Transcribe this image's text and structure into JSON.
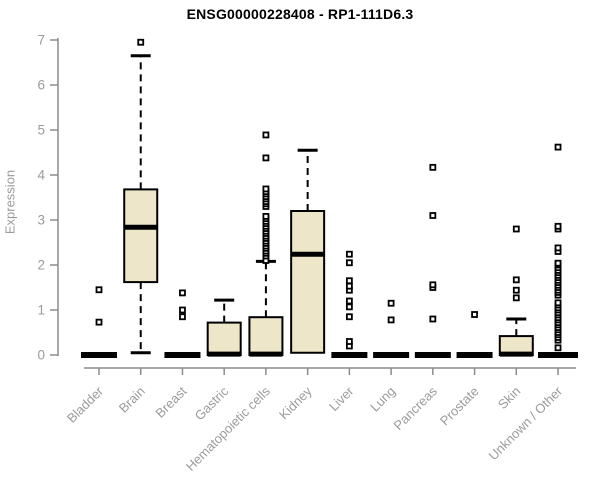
{
  "title": "ENSG00000228408 - RP1-111D6.3",
  "chart_data": {
    "type": "boxplot",
    "title": "ENSG00000228408 - RP1-111D6.3",
    "xlabel": "",
    "ylabel": "Expression",
    "ylim": [
      0,
      7
    ],
    "yticks": [
      0,
      1,
      2,
      3,
      4,
      5,
      6,
      7
    ],
    "grid": false,
    "legend": null,
    "colors": {
      "box_fill": "#ede6c8",
      "box_stroke": "#000000",
      "axis": "#8c8c8c",
      "tick_label": "#9b9b9b",
      "title": "#000000",
      "background": "#ffffff"
    },
    "categories": [
      "Bladder",
      "Brain",
      "Breast",
      "Gastric",
      "Hematopoietic cells",
      "Kidney",
      "Liver",
      "Lung",
      "Pancreas",
      "Prostate",
      "Skin",
      "Unknown / Other"
    ],
    "boxes": [
      {
        "label": "Bladder",
        "collapsed": true,
        "q1": 0,
        "median": 0,
        "q3": 0,
        "whisker_low": 0,
        "whisker_high": 0,
        "outliers": [
          0.73,
          1.45
        ]
      },
      {
        "label": "Brain",
        "collapsed": false,
        "q1": 1.62,
        "median": 2.84,
        "q3": 3.68,
        "whisker_low": 0.05,
        "whisker_high": 6.65,
        "outliers": [
          6.95
        ]
      },
      {
        "label": "Breast",
        "collapsed": true,
        "q1": 0,
        "median": 0,
        "q3": 0,
        "whisker_low": 0,
        "whisker_high": 0,
        "outliers": [
          0.85,
          1.0,
          1.38
        ]
      },
      {
        "label": "Gastric",
        "collapsed": false,
        "q1": 0,
        "median": 0.02,
        "q3": 0.72,
        "whisker_low": 0,
        "whisker_high": 1.22,
        "outliers": []
      },
      {
        "label": "Hematopoietic cells",
        "collapsed": false,
        "q1": 0,
        "median": 0.02,
        "q3": 0.84,
        "whisker_low": 0,
        "whisker_high": 2.08,
        "outliers": [
          2.1,
          2.2,
          2.26,
          2.31,
          2.37,
          2.42,
          2.48,
          2.53,
          2.59,
          2.64,
          2.7,
          2.75,
          2.81,
          2.86,
          2.92,
          2.97,
          3.03,
          3.08,
          3.3,
          3.36,
          3.41,
          3.47,
          3.52,
          3.58,
          3.63,
          3.69,
          4.38,
          4.89
        ]
      },
      {
        "label": "Kidney",
        "collapsed": false,
        "q1": 0.05,
        "median": 2.24,
        "q3": 3.2,
        "whisker_low": 0.05,
        "whisker_high": 4.55,
        "outliers": []
      },
      {
        "label": "Liver",
        "collapsed": true,
        "q1": 0,
        "median": 0,
        "q3": 0,
        "whisker_low": 0,
        "whisker_high": 0,
        "outliers": [
          0.2,
          0.3,
          0.85,
          1.07,
          1.2,
          1.44,
          1.53,
          1.65,
          2.05,
          2.24
        ]
      },
      {
        "label": "Lung",
        "collapsed": true,
        "q1": 0,
        "median": 0,
        "q3": 0,
        "whisker_low": 0,
        "whisker_high": 0,
        "outliers": [
          0.78,
          1.15
        ]
      },
      {
        "label": "Pancreas",
        "collapsed": true,
        "q1": 0,
        "median": 0,
        "q3": 0,
        "whisker_low": 0,
        "whisker_high": 0,
        "outliers": [
          0.8,
          1.5,
          1.56,
          3.1,
          4.17
        ]
      },
      {
        "label": "Prostate",
        "collapsed": true,
        "q1": 0,
        "median": 0,
        "q3": 0,
        "whisker_low": 0,
        "whisker_high": 0,
        "outliers": [
          0.9
        ]
      },
      {
        "label": "Skin",
        "collapsed": false,
        "q1": 0,
        "median": 0.02,
        "q3": 0.42,
        "whisker_low": 0,
        "whisker_high": 0.8,
        "outliers": [
          1.27,
          1.44,
          1.67,
          2.8
        ]
      },
      {
        "label": "Unknown / Other",
        "collapsed": true,
        "q1": 0,
        "median": 0,
        "q3": 0,
        "whisker_low": 0,
        "whisker_high": 0,
        "zero_bar_width": 40,
        "outliers": [
          0.16,
          0.33,
          0.39,
          0.45,
          0.5,
          0.56,
          0.61,
          0.67,
          0.72,
          0.78,
          0.83,
          0.89,
          0.94,
          1.0,
          1.05,
          1.11,
          1.16,
          1.33,
          1.39,
          1.44,
          1.5,
          1.55,
          1.61,
          1.66,
          1.72,
          1.77,
          1.83,
          1.88,
          1.94,
          2.0,
          2.04,
          2.3,
          2.38,
          2.8,
          2.86,
          4.62
        ]
      }
    ]
  }
}
